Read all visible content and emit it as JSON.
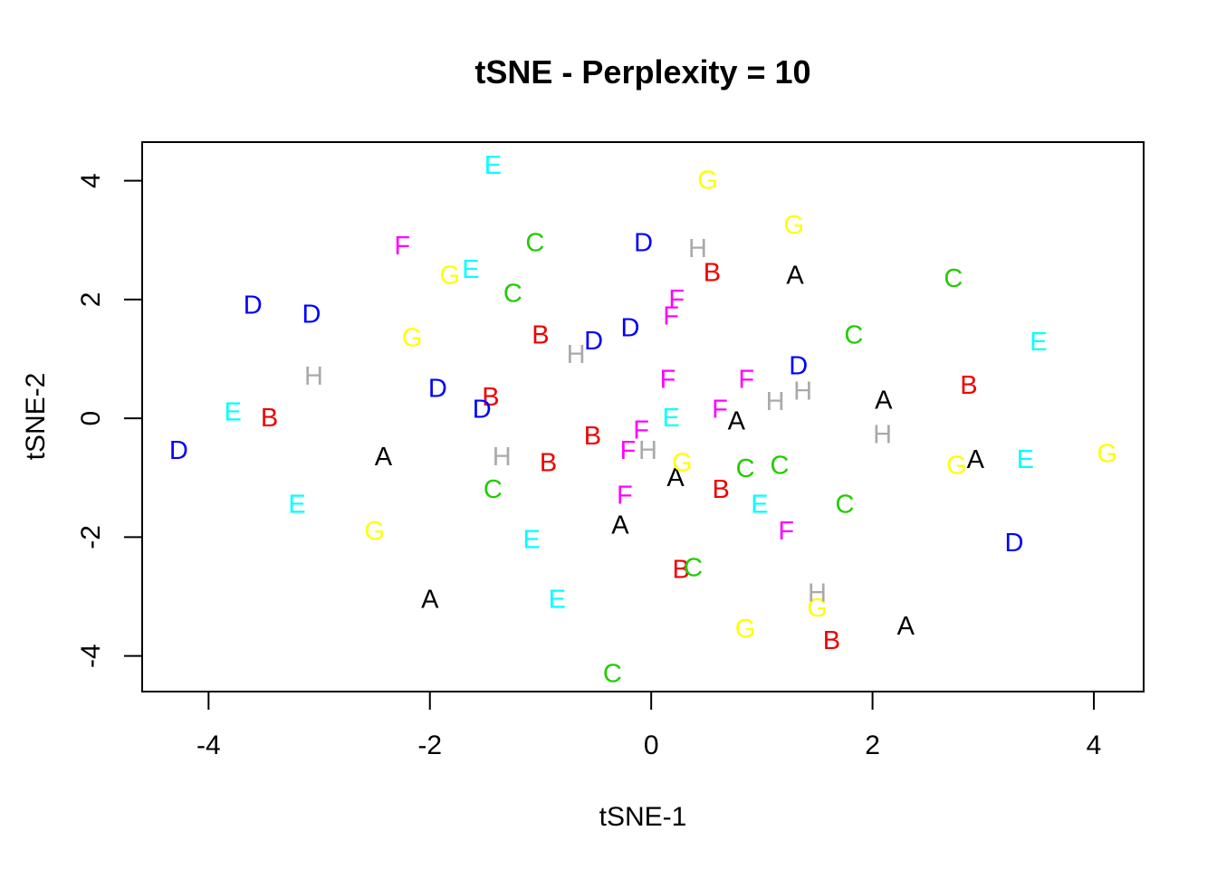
{
  "chart_data": {
    "type": "scatter",
    "title": "tSNE - Perplexity = 10",
    "xlabel": "tSNE-1",
    "ylabel": "tSNE-2",
    "xlim": [
      -4.6,
      4.45
    ],
    "ylim": [
      -4.6,
      4.65
    ],
    "x_ticks": [
      -4,
      -2,
      0,
      2,
      4
    ],
    "y_ticks": [
      -4,
      -2,
      0,
      2,
      4
    ],
    "x_tick_labels": [
      "-4",
      "-2",
      "0",
      "2",
      "4"
    ],
    "y_tick_labels": [
      "-4",
      "-2",
      "0",
      "2",
      "4"
    ],
    "grid": false,
    "marker": "letter",
    "colors": {
      "A": "#000000",
      "B": "#ee0000",
      "C": "#22cc00",
      "D": "#0000ff",
      "E": "#00ffff",
      "F": "#ff00ff",
      "G": "#ffff00",
      "H": "#aaaaaa"
    },
    "series": [
      {
        "name": "A",
        "points": [
          [
            1.3,
            2.4
          ],
          [
            2.1,
            0.3
          ],
          [
            0.77,
            -0.05
          ],
          [
            -2.42,
            -0.65
          ],
          [
            2.93,
            -0.7
          ],
          [
            0.22,
            -1.0
          ],
          [
            -0.28,
            -1.8
          ],
          [
            -2.0,
            -3.05
          ],
          [
            2.3,
            -3.5
          ]
        ]
      },
      {
        "name": "B",
        "points": [
          [
            0.55,
            2.45
          ],
          [
            -1.0,
            1.4
          ],
          [
            -1.45,
            0.35
          ],
          [
            -3.45,
            0.0
          ],
          [
            -0.53,
            -0.3
          ],
          [
            -0.93,
            -0.75
          ],
          [
            0.63,
            -1.2
          ],
          [
            2.87,
            0.55
          ],
          [
            0.27,
            -2.55
          ],
          [
            1.63,
            -3.75
          ]
        ]
      },
      {
        "name": "C",
        "points": [
          [
            -1.05,
            2.95
          ],
          [
            -1.25,
            2.1
          ],
          [
            2.73,
            2.35
          ],
          [
            1.83,
            1.4
          ],
          [
            0.85,
            -0.85
          ],
          [
            1.16,
            -0.8
          ],
          [
            -1.43,
            -1.2
          ],
          [
            1.75,
            -1.45
          ],
          [
            0.38,
            -2.52
          ],
          [
            -0.35,
            -4.3
          ]
        ]
      },
      {
        "name": "D",
        "points": [
          [
            -0.07,
            2.95
          ],
          [
            -3.6,
            1.9
          ],
          [
            -3.07,
            1.75
          ],
          [
            -0.52,
            1.3
          ],
          [
            -0.19,
            1.52
          ],
          [
            1.33,
            0.88
          ],
          [
            -1.93,
            0.5
          ],
          [
            -1.53,
            0.15
          ],
          [
            -4.27,
            -0.55
          ],
          [
            3.28,
            -2.1
          ]
        ]
      },
      {
        "name": "E",
        "points": [
          [
            -1.43,
            4.25
          ],
          [
            -1.63,
            2.5
          ],
          [
            3.5,
            1.28
          ],
          [
            -3.78,
            0.1
          ],
          [
            0.18,
            0.0
          ],
          [
            3.38,
            -0.7
          ],
          [
            -3.2,
            -1.45
          ],
          [
            0.98,
            -1.45
          ],
          [
            -1.08,
            -2.05
          ],
          [
            -0.85,
            -3.05
          ]
        ]
      },
      {
        "name": "F",
        "points": [
          [
            -2.25,
            2.9
          ],
          [
            0.23,
            2.0
          ],
          [
            0.18,
            1.72
          ],
          [
            0.15,
            0.65
          ],
          [
            0.86,
            0.65
          ],
          [
            0.62,
            0.15
          ],
          [
            -0.09,
            -0.2
          ],
          [
            -0.21,
            -0.55
          ],
          [
            -0.24,
            -1.3
          ],
          [
            1.22,
            -1.9
          ]
        ]
      },
      {
        "name": "G",
        "points": [
          [
            0.51,
            4.0
          ],
          [
            1.29,
            3.25
          ],
          [
            -1.82,
            2.4
          ],
          [
            -2.16,
            1.35
          ],
          [
            0.28,
            -0.75
          ],
          [
            2.76,
            -0.8
          ],
          [
            4.12,
            -0.6
          ],
          [
            -2.5,
            -1.9
          ],
          [
            0.85,
            -3.55
          ],
          [
            1.5,
            -3.2
          ]
        ]
      },
      {
        "name": "H",
        "points": [
          [
            0.42,
            2.85
          ],
          [
            -0.68,
            1.07
          ],
          [
            -3.05,
            0.7
          ],
          [
            1.12,
            0.28
          ],
          [
            1.37,
            0.45
          ],
          [
            2.09,
            -0.28
          ],
          [
            -1.35,
            -0.65
          ],
          [
            -0.03,
            -0.55
          ],
          [
            1.5,
            -2.95
          ]
        ]
      }
    ]
  }
}
